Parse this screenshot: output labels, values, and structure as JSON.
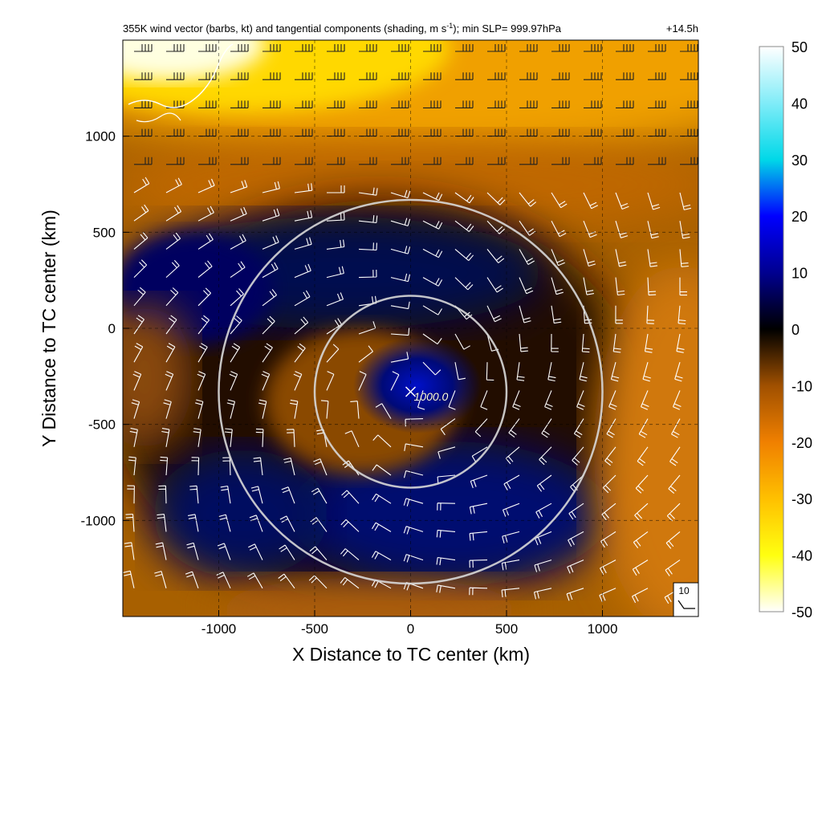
{
  "chart_data": {
    "type": "heatmap",
    "title": "355K wind vector (barbs, kt) and tangential components (shading, m s",
    "title_sup": "-1",
    "title_tail": "); min SLP= 999.97hPa",
    "lead_time": "+14.5h",
    "xlabel": "X Distance to TC center (km)",
    "ylabel": "Y Distance to TC center (km)",
    "xlim": [
      -1500,
      1500
    ],
    "ylim": [
      -1500,
      1500
    ],
    "x_ticks": [
      -1000,
      -500,
      0,
      500,
      1000
    ],
    "y_ticks": [
      1000,
      500,
      0,
      -500,
      -1000
    ],
    "colorbar": {
      "min": -50,
      "max": 50,
      "ticks": [
        50,
        40,
        30,
        20,
        10,
        0,
        -10,
        -20,
        -30,
        -40,
        -50
      ],
      "stops": [
        {
          "v": -50,
          "c": "#ffffff"
        },
        {
          "v": -40,
          "c": "#ffff10"
        },
        {
          "v": -30,
          "c": "#ffc000"
        },
        {
          "v": -20,
          "c": "#f08000"
        },
        {
          "v": -10,
          "c": "#a05000"
        },
        {
          "v": 0,
          "c": "#000000"
        },
        {
          "v": 10,
          "c": "#000090"
        },
        {
          "v": 20,
          "c": "#0000ff"
        },
        {
          "v": 30,
          "c": "#00d8e8"
        },
        {
          "v": 40,
          "c": "#80ecf8"
        },
        {
          "v": 50,
          "c": "#ffffff"
        }
      ]
    },
    "field_description": {
      "north_band_tangential_ms": -35,
      "northwest_corner_tangential_ms": -48,
      "ring_negative_zone_tangential_ms": 8,
      "core_tangential_ms": 15,
      "east_south_edge_tangential_ms": -18
    },
    "tc_center": {
      "x": 0,
      "y": -330
    },
    "radius_circles_km": [
      500,
      1000
    ],
    "center_label": "1000.0",
    "barb_reference_kt": "10"
  }
}
